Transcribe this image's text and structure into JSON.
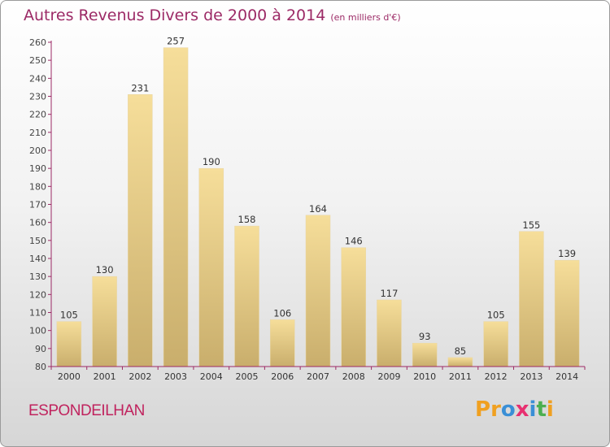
{
  "title": "Autres Revenus Divers de 2000 à 2014",
  "subtitle": "(en milliers d'€)",
  "place_name": "ESPONDEILHAN",
  "logo_text": "Proxiti",
  "colors": {
    "title": "#9c2a66",
    "place": "#c0235e",
    "axis": "#9c2a66",
    "bar_light": "#f6de9a",
    "bar_dark": "#c9ae6c",
    "logo": [
      "#f0a020",
      "#f0a020",
      "#3a8fd6",
      "#e83070",
      "#3a8fd6",
      "#4caf50",
      "#f0a020"
    ]
  },
  "chart_data": {
    "type": "bar",
    "title": "Autres Revenus Divers de 2000 à 2014",
    "subtitle": "(en milliers d'€)",
    "categories": [
      "2000",
      "2001",
      "2002",
      "2003",
      "2004",
      "2005",
      "2006",
      "2007",
      "2008",
      "2009",
      "2010",
      "2011",
      "2012",
      "2013",
      "2014"
    ],
    "values": [
      105,
      130,
      231,
      257,
      190,
      158,
      106,
      164,
      146,
      117,
      93,
      85,
      105,
      155,
      139
    ],
    "ylim": [
      80,
      260
    ],
    "yticks": [
      80,
      90,
      100,
      110,
      120,
      130,
      140,
      150,
      160,
      170,
      180,
      190,
      200,
      210,
      220,
      230,
      240,
      250,
      260
    ],
    "grid": false,
    "data_labels": true
  }
}
